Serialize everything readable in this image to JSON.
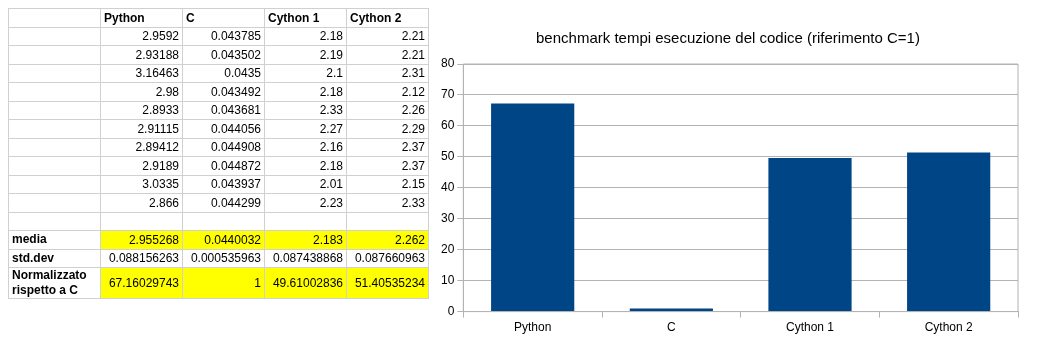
{
  "chart_data": [
    {
      "type": "other",
      "categories": [
        "Python",
        "C",
        "Cython 1",
        "Cython 2"
      ],
      "y_categories": [
        null,
        null,
        null,
        null,
        null,
        null,
        null,
        null,
        null,
        null,
        null,
        "media",
        "std.dev",
        "Normalizzato rispetto a C"
      ],
      "cell_labels": [
        [
          "2.9592",
          "0.043785",
          "2.18",
          "2.21"
        ],
        [
          "2.93188",
          "0.043502",
          "2.19",
          "2.21"
        ],
        [
          "3.16463",
          "0.0435",
          "2.1",
          "2.31"
        ],
        [
          "2.98",
          "0.043492",
          "2.18",
          "2.12"
        ],
        [
          "2.8933",
          "0.043681",
          "2.33",
          "2.26"
        ],
        [
          "2.91115",
          "0.044056",
          "2.27",
          "2.29"
        ],
        [
          "2.89412",
          "0.044908",
          "2.16",
          "2.37"
        ],
        [
          "2.9189",
          "0.044872",
          "2.18",
          "2.37"
        ],
        [
          "3.0335",
          "0.043937",
          "2.01",
          "2.15"
        ],
        [
          "2.866",
          "0.044299",
          "2.23",
          "2.33"
        ],
        [
          null,
          null,
          null,
          null
        ],
        [
          "2.955268",
          "0.0440032",
          "2.183",
          "2.262"
        ],
        [
          "0.088156263",
          "0.000535963",
          "0.087438868",
          "0.087660963"
        ],
        [
          "67.16029743",
          "1",
          "49.61002836",
          "51.40535234"
        ]
      ],
      "colors": [
        null,
        null,
        null,
        null,
        null,
        null,
        null,
        null,
        null,
        null,
        null,
        "#ffff00",
        null,
        "#ffff00"
      ]
    },
    {
      "type": "bar",
      "title": "benchmark tempi esecuzione del codice (riferimento C=1)",
      "categories": [
        "Python",
        "C",
        "Cython 1",
        "Cython 2"
      ],
      "values": [
        67.2,
        1.0,
        49.6,
        51.4
      ],
      "color": "#004586",
      "ylim": [
        0,
        80
      ],
      "yticks": [
        0,
        10,
        20,
        30,
        40,
        50,
        60,
        70,
        80
      ],
      "grid": "y",
      "legend": false
    }
  ]
}
